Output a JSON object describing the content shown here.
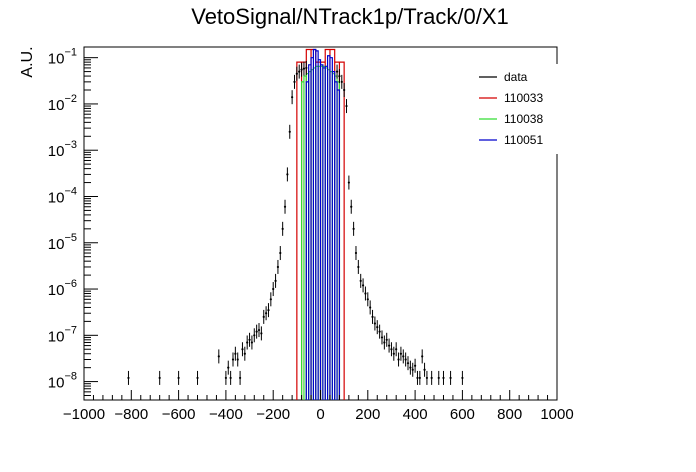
{
  "chart_data": {
    "type": "line",
    "title": "VetoSignal/NTrack1p/Track/0/X1",
    "xlabel": "",
    "ylabel": "A.U.",
    "log_y": true,
    "xlim": [
      -1000,
      1000
    ],
    "ylim": [
      4e-09,
      0.17
    ],
    "grid": false,
    "legend_placement": "top-right",
    "x_ticks": [
      "−1000",
      "−800",
      "−600",
      "−400",
      "−200",
      "0",
      "200",
      "400",
      "600",
      "800",
      "1000"
    ],
    "y_ticks": [
      "10−8",
      "10−7",
      "10−6",
      "10−5",
      "10−4",
      "10−3",
      "10−2",
      "10−1"
    ],
    "y_tick_values": [
      1e-08,
      1e-07,
      1e-06,
      1e-05,
      0.0001,
      0.001,
      0.01,
      0.1
    ],
    "series": [
      {
        "name": "data",
        "style": "points",
        "color": "#000000",
        "x": [
          -812,
          -680,
          -600,
          -520,
          -430,
          -400,
          -390,
          -380,
          -370,
          -360,
          -350,
          -340,
          -330,
          -320,
          -310,
          -300,
          -290,
          -280,
          -270,
          -260,
          -250,
          -240,
          -230,
          -220,
          -210,
          -200,
          -190,
          -180,
          -170,
          -160,
          -150,
          -140,
          -130,
          -120,
          -110,
          -100,
          -90,
          -80,
          -70,
          -60,
          70,
          80,
          90,
          100,
          110,
          120,
          130,
          140,
          150,
          160,
          170,
          180,
          190,
          200,
          210,
          220,
          230,
          240,
          250,
          260,
          270,
          280,
          290,
          300,
          310,
          320,
          330,
          340,
          350,
          360,
          370,
          380,
          390,
          400,
          410,
          420,
          430,
          440,
          450,
          470,
          500,
          520,
          550,
          600
        ],
        "y": [
          1.2e-08,
          1.2e-08,
          1.2e-08,
          1.2e-08,
          3.5e-08,
          1.2e-08,
          2e-08,
          1.2e-08,
          3e-08,
          4e-08,
          3e-08,
          1.2e-08,
          5e-08,
          4e-08,
          7e-08,
          8e-08,
          7e-08,
          1e-07,
          1.2e-07,
          1.3e-07,
          1.1e-07,
          2.5e-07,
          3e-07,
          3.5e-07,
          6e-07,
          1e-06,
          1.5e-06,
          3e-06,
          6e-06,
          2e-05,
          6e-05,
          0.0003,
          0.0025,
          0.014,
          0.03,
          0.045,
          0.05,
          0.055,
          0.058,
          0.06,
          0.05,
          0.04,
          0.03,
          0.02,
          0.009,
          0.0002,
          6e-05,
          2e-05,
          6e-06,
          3e-06,
          1.5e-06,
          1.2e-06,
          8e-07,
          6e-07,
          4e-07,
          2.5e-07,
          1.8e-07,
          1.5e-07,
          1.2e-07,
          9e-08,
          7e-08,
          8e-08,
          6e-08,
          5e-08,
          4e-08,
          5e-08,
          3e-08,
          4e-08,
          3.5e-08,
          3e-08,
          2.5e-08,
          2e-08,
          1.8e-08,
          2.2e-08,
          1.2e-08,
          1.2e-08,
          3.5e-08,
          1.8e-08,
          1.2e-08,
          1.2e-08,
          1.2e-08,
          1.2e-08,
          1.2e-08,
          1.2e-08
        ]
      },
      {
        "name": "110033",
        "style": "hist",
        "color": "#d40000",
        "edges": [
          -100,
          -80,
          -60,
          -40,
          -20,
          0,
          20,
          40,
          60,
          80,
          100
        ],
        "values": [
          0.08,
          0.08,
          0.15,
          0.15,
          0.08,
          0.08,
          0.15,
          0.15,
          0.08,
          0.08
        ]
      },
      {
        "name": "110038",
        "style": "hist",
        "color": "#33dd33",
        "edges": [
          -80,
          -70,
          -60,
          -50,
          -40,
          -30,
          -20,
          -10,
          0,
          10,
          20,
          30,
          40,
          50,
          60,
          70,
          80
        ],
        "values": [
          0.03,
          0.04,
          0.045,
          0.05,
          0.055,
          0.06,
          0.065,
          0.065,
          0.065,
          0.065,
          0.06,
          0.055,
          0.05,
          0.045,
          0.04,
          0.03
        ]
      },
      {
        "name": "110051",
        "style": "hist",
        "color": "#0000cc",
        "edges": [
          -60,
          -50,
          -40,
          -30,
          -20,
          -10,
          0,
          10,
          20,
          30,
          40,
          50,
          60,
          70,
          80
        ],
        "values": [
          0.03,
          0.07,
          0.1,
          0.15,
          0.14,
          0.09,
          0.07,
          0.06,
          0.065,
          0.11,
          0.1,
          0.05,
          0.03,
          0.02
        ]
      }
    ]
  }
}
